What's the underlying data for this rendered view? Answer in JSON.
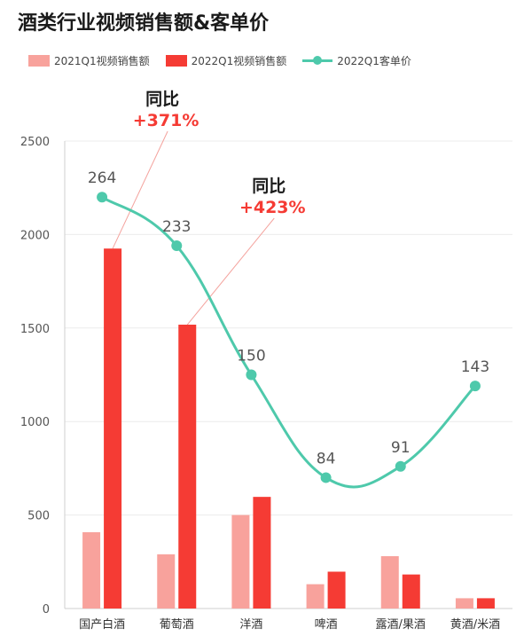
{
  "chart_data": {
    "type": "bar",
    "title": "酒类行业视频销售额&客单价",
    "categories": [
      "国产白酒",
      "葡萄酒",
      "洋酒",
      "啤酒",
      "露酒/果酒",
      "黄酒/米酒"
    ],
    "series": [
      {
        "name": "2021Q1视频销售额",
        "type": "bar",
        "color": "#f8a29c",
        "values": [
          408,
          290,
          500,
          130,
          280,
          55
        ]
      },
      {
        "name": "2022Q1视频销售额",
        "type": "bar",
        "color": "#f53b34",
        "values": [
          1925,
          1518,
          597,
          197,
          182,
          55
        ]
      },
      {
        "name": "2022Q1客单价",
        "type": "line",
        "color": "#4ec9ab",
        "values": [
          264,
          233,
          150,
          84,
          91,
          143
        ]
      }
    ],
    "line_plot_positions": [
      2200,
      1940,
      1250,
      700,
      760,
      1190
    ],
    "ylim": [
      0,
      2500
    ],
    "yticks": [
      "0",
      "500",
      "1000",
      "1500",
      "2000",
      "2500"
    ],
    "grid": true,
    "legend_position": "top-left",
    "annotations": [
      {
        "label": "同比",
        "value": "+371%",
        "category": "国产白酒"
      },
      {
        "label": "同比",
        "value": "+423%",
        "category": "葡萄酒"
      }
    ]
  }
}
